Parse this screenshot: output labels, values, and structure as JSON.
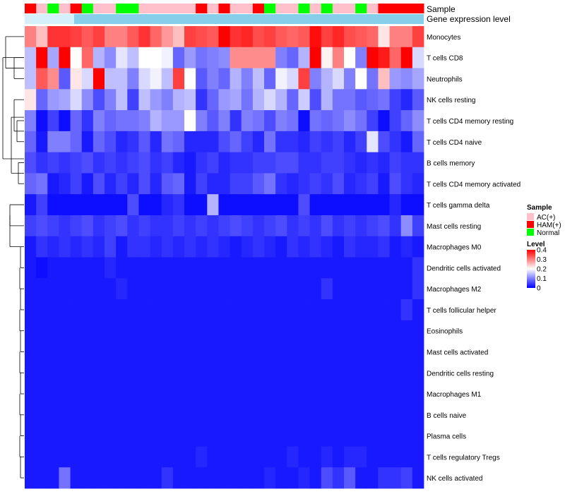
{
  "chart_data": {
    "type": "heatmap",
    "title": "",
    "xlabel": "",
    "ylabel": "",
    "annotations": {
      "sample_label": "Sample",
      "gene_label": "Gene expression level"
    },
    "row_labels": [
      "Monocytes",
      "T cells CD8",
      "Neutrophils",
      "NK cells resting",
      "T cells CD4 memory resting",
      "T cells CD4 naive",
      "B cells memory",
      "T cells CD4 memory activated",
      "T cells gamma delta",
      "Mast cells resting",
      "Macrophages M0",
      "Dendritic cells activated",
      "Macrophages M2",
      "T cells follicular helper",
      "Eosinophils",
      "Mast cells activated",
      "Dendritic cells resting",
      "Macrophages M1",
      "B cells naive",
      "Plasma cells",
      "T cells regulatory  Tregs",
      "NK cells activated"
    ],
    "sample_groups": [
      "HAM(+)",
      "AC(+)",
      "Normal",
      "AC(+)",
      "HAM(+)",
      "Normal",
      "AC(+)",
      "AC(+)",
      "Normal",
      "Normal",
      "AC(+)",
      "AC(+)",
      "AC(+)",
      "AC(+)",
      "AC(+)",
      "HAM(+)",
      "AC(+)",
      "HAM(+)",
      "AC(+)",
      "AC(+)",
      "HAM(+)",
      "Normal",
      "AC(+)",
      "AC(+)",
      "Normal",
      "AC(+)",
      "Normal",
      "AC(+)",
      "AC(+)",
      "Normal",
      "AC(+)",
      "HAM(+)",
      "HAM(+)",
      "HAM(+)",
      "HAM(+)"
    ],
    "values": [
      [
        0.3,
        0.25,
        0.36,
        0.36,
        0.35,
        0.33,
        0.35,
        0.3,
        0.3,
        0.33,
        0.36,
        0.32,
        0.28,
        0.25,
        0.35,
        0.34,
        0.33,
        0.4,
        0.36,
        0.37,
        0.34,
        0.35,
        0.33,
        0.32,
        0.33,
        0.39,
        0.35,
        0.37,
        0.34,
        0.33,
        0.32,
        0.22,
        0.3,
        0.3,
        0.35
      ],
      [
        0.15,
        0.41,
        0.13,
        0.41,
        0.2,
        0.32,
        0.14,
        0.11,
        0.18,
        0.15,
        0.2,
        0.2,
        0.19,
        0.08,
        0.12,
        0.09,
        0.1,
        0.11,
        0.29,
        0.29,
        0.29,
        0.29,
        0.1,
        0.08,
        0.14,
        0.4,
        0.21,
        0.3,
        0.2,
        0.1,
        0.4,
        0.38,
        0.32,
        0.4,
        0.17
      ],
      [
        0.15,
        0.33,
        0.29,
        0.07,
        0.22,
        0.17,
        0.41,
        0.15,
        0.15,
        0.1,
        0.17,
        0.19,
        0.15,
        0.35,
        0.2,
        0.07,
        0.1,
        0.08,
        0.14,
        0.1,
        0.15,
        0.08,
        0.19,
        0.17,
        0.35,
        0.1,
        0.14,
        0.17,
        0.1,
        0.2,
        0.09,
        0.25,
        0.12,
        0.11,
        0.13
      ],
      [
        0.22,
        0.08,
        0.12,
        0.13,
        0.17,
        0.11,
        0.06,
        0.1,
        0.15,
        0.05,
        0.15,
        0.12,
        0.1,
        0.14,
        0.15,
        0.04,
        0.08,
        0.12,
        0.13,
        0.09,
        0.14,
        0.17,
        0.14,
        0.08,
        0.16,
        0.06,
        0.14,
        0.09,
        0.09,
        0.07,
        0.08,
        0.09,
        0.05,
        0.03,
        0.07
      ],
      [
        0.1,
        0.01,
        0.05,
        0.01,
        0.08,
        0.04,
        0.1,
        0.08,
        0.09,
        0.09,
        0.1,
        0.14,
        0.12,
        0.12,
        0.2,
        0.1,
        0.07,
        0.1,
        0.04,
        0.1,
        0.09,
        0.06,
        0.1,
        0.09,
        0.01,
        0.09,
        0.08,
        0.09,
        0.11,
        0.09,
        0.05,
        0.01,
        0.05,
        0.08,
        0.11
      ],
      [
        0.08,
        0.02,
        0.1,
        0.1,
        0.08,
        0.02,
        0.08,
        0.06,
        0.03,
        0.04,
        0.07,
        0.03,
        0.09,
        0.08,
        0.03,
        0.03,
        0.03,
        0.06,
        0.08,
        0.05,
        0.03,
        0.09,
        0.04,
        0.04,
        0.03,
        0.05,
        0.04,
        0.05,
        0.03,
        0.05,
        0.18,
        0.06,
        0.04,
        0.02,
        0.08
      ],
      [
        0.06,
        0.04,
        0.05,
        0.04,
        0.05,
        0.06,
        0.04,
        0.05,
        0.04,
        0.05,
        0.06,
        0.04,
        0.05,
        0.03,
        0.02,
        0.04,
        0.05,
        0.03,
        0.04,
        0.04,
        0.05,
        0.05,
        0.06,
        0.06,
        0.04,
        0.04,
        0.05,
        0.05,
        0.04,
        0.03,
        0.04,
        0.03,
        0.05,
        0.04,
        0.04
      ],
      [
        0.08,
        0.09,
        0.02,
        0.03,
        0.05,
        0.02,
        0.06,
        0.03,
        0.05,
        0.03,
        0.06,
        0.03,
        0.07,
        0.08,
        0.02,
        0.05,
        0.03,
        0.03,
        0.05,
        0.05,
        0.07,
        0.09,
        0.04,
        0.03,
        0.04,
        0.05,
        0.04,
        0.06,
        0.03,
        0.04,
        0.05,
        0.02,
        0.06,
        0.04,
        0.03
      ],
      [
        0.02,
        0.05,
        0.01,
        0.01,
        0.01,
        0.01,
        0.01,
        0.01,
        0.01,
        0.06,
        0.01,
        0.01,
        0.03,
        0.04,
        0.01,
        0.01,
        0.14,
        0.01,
        0.01,
        0.01,
        0.01,
        0.01,
        0.01,
        0.01,
        0.06,
        0.01,
        0.01,
        0.01,
        0.01,
        0.01,
        0.01,
        0.01,
        0.03,
        0.01,
        0.01
      ],
      [
        0.05,
        0.06,
        0.05,
        0.04,
        0.05,
        0.06,
        0.04,
        0.05,
        0.06,
        0.04,
        0.05,
        0.04,
        0.04,
        0.05,
        0.04,
        0.05,
        0.04,
        0.05,
        0.06,
        0.05,
        0.04,
        0.05,
        0.06,
        0.04,
        0.05,
        0.04,
        0.06,
        0.04,
        0.05,
        0.04,
        0.05,
        0.06,
        0.04,
        0.11,
        0.05
      ],
      [
        0.02,
        0.04,
        0.03,
        0.04,
        0.03,
        0.04,
        0.03,
        0.05,
        0.02,
        0.04,
        0.04,
        0.03,
        0.04,
        0.03,
        0.04,
        0.03,
        0.04,
        0.03,
        0.02,
        0.03,
        0.04,
        0.03,
        0.02,
        0.04,
        0.03,
        0.04,
        0.03,
        0.02,
        0.04,
        0.03,
        0.03,
        0.04,
        0.02,
        0.03,
        0.02
      ],
      [
        0.02,
        0.01,
        0.02,
        0.02,
        0.02,
        0.02,
        0.02,
        0.03,
        0.02,
        0.02,
        0.02,
        0.02,
        0.02,
        0.02,
        0.02,
        0.02,
        0.02,
        0.02,
        0.02,
        0.02,
        0.02,
        0.02,
        0.02,
        0.02,
        0.02,
        0.02,
        0.02,
        0.02,
        0.02,
        0.02,
        0.02,
        0.02,
        0.02,
        0.02,
        0.04
      ],
      [
        0.02,
        0.02,
        0.02,
        0.02,
        0.02,
        0.02,
        0.02,
        0.02,
        0.03,
        0.02,
        0.02,
        0.02,
        0.02,
        0.02,
        0.02,
        0.02,
        0.02,
        0.02,
        0.02,
        0.02,
        0.02,
        0.02,
        0.02,
        0.02,
        0.02,
        0.02,
        0.04,
        0.02,
        0.02,
        0.02,
        0.02,
        0.02,
        0.02,
        0.02,
        0.04
      ],
      [
        0.02,
        0.02,
        0.02,
        0.02,
        0.02,
        0.02,
        0.02,
        0.02,
        0.02,
        0.02,
        0.02,
        0.02,
        0.02,
        0.02,
        0.02,
        0.02,
        0.02,
        0.02,
        0.02,
        0.02,
        0.02,
        0.02,
        0.02,
        0.02,
        0.02,
        0.02,
        0.02,
        0.02,
        0.02,
        0.02,
        0.02,
        0.02,
        0.02,
        0.04,
        0.02
      ],
      [
        0.02,
        0.02,
        0.02,
        0.02,
        0.02,
        0.02,
        0.02,
        0.02,
        0.02,
        0.02,
        0.02,
        0.02,
        0.02,
        0.02,
        0.02,
        0.02,
        0.02,
        0.02,
        0.02,
        0.02,
        0.02,
        0.02,
        0.02,
        0.02,
        0.02,
        0.02,
        0.02,
        0.02,
        0.02,
        0.02,
        0.02,
        0.02,
        0.02,
        0.02,
        0.02
      ],
      [
        0.02,
        0.02,
        0.02,
        0.02,
        0.02,
        0.02,
        0.02,
        0.02,
        0.02,
        0.02,
        0.02,
        0.02,
        0.02,
        0.02,
        0.02,
        0.02,
        0.02,
        0.02,
        0.02,
        0.02,
        0.02,
        0.02,
        0.02,
        0.02,
        0.02,
        0.02,
        0.02,
        0.02,
        0.02,
        0.02,
        0.02,
        0.02,
        0.02,
        0.02,
        0.02
      ],
      [
        0.02,
        0.02,
        0.02,
        0.02,
        0.02,
        0.02,
        0.02,
        0.02,
        0.02,
        0.02,
        0.02,
        0.02,
        0.02,
        0.02,
        0.02,
        0.02,
        0.02,
        0.02,
        0.02,
        0.02,
        0.02,
        0.02,
        0.02,
        0.02,
        0.02,
        0.02,
        0.02,
        0.02,
        0.02,
        0.02,
        0.02,
        0.02,
        0.02,
        0.02,
        0.02
      ],
      [
        0.02,
        0.02,
        0.02,
        0.02,
        0.02,
        0.02,
        0.02,
        0.02,
        0.02,
        0.02,
        0.02,
        0.02,
        0.02,
        0.02,
        0.02,
        0.02,
        0.02,
        0.02,
        0.02,
        0.02,
        0.02,
        0.02,
        0.02,
        0.02,
        0.02,
        0.02,
        0.02,
        0.02,
        0.02,
        0.02,
        0.02,
        0.02,
        0.02,
        0.02,
        0.02
      ],
      [
        0.02,
        0.02,
        0.02,
        0.02,
        0.02,
        0.02,
        0.02,
        0.02,
        0.02,
        0.02,
        0.02,
        0.02,
        0.02,
        0.02,
        0.02,
        0.02,
        0.02,
        0.02,
        0.02,
        0.02,
        0.02,
        0.02,
        0.02,
        0.02,
        0.02,
        0.02,
        0.02,
        0.02,
        0.02,
        0.02,
        0.02,
        0.02,
        0.02,
        0.02,
        0.02
      ],
      [
        0.02,
        0.02,
        0.02,
        0.02,
        0.02,
        0.02,
        0.02,
        0.02,
        0.02,
        0.02,
        0.02,
        0.02,
        0.02,
        0.02,
        0.02,
        0.02,
        0.02,
        0.02,
        0.02,
        0.02,
        0.02,
        0.02,
        0.02,
        0.02,
        0.02,
        0.02,
        0.02,
        0.02,
        0.02,
        0.02,
        0.02,
        0.02,
        0.02,
        0.02,
        0.02
      ],
      [
        0.02,
        0.02,
        0.02,
        0.02,
        0.02,
        0.02,
        0.02,
        0.02,
        0.02,
        0.02,
        0.02,
        0.02,
        0.02,
        0.02,
        0.02,
        0.03,
        0.02,
        0.02,
        0.02,
        0.02,
        0.02,
        0.02,
        0.02,
        0.03,
        0.02,
        0.02,
        0.03,
        0.02,
        0.03,
        0.03,
        0.02,
        0.02,
        0.02,
        0.02,
        0.02
      ],
      [
        0.02,
        0.02,
        0.02,
        0.09,
        0.02,
        0.02,
        0.02,
        0.02,
        0.02,
        0.02,
        0.02,
        0.02,
        0.04,
        0.02,
        0.02,
        0.02,
        0.02,
        0.02,
        0.02,
        0.02,
        0.02,
        0.03,
        0.02,
        0.02,
        0.03,
        0.02,
        0.06,
        0.04,
        0.07,
        0.02,
        0.02,
        0.04,
        0.04,
        0.05,
        0.02
      ]
    ],
    "legend": {
      "position": "right",
      "sample_title": "Sample",
      "sample_entries": [
        {
          "label": "AC(+)",
          "color": "#ffc0cb"
        },
        {
          "label": "HAM(+)",
          "color": "#ff0000"
        },
        {
          "label": "Normal",
          "color": "#00ff00"
        }
      ],
      "level_title": "Level",
      "level_range": [
        0,
        0.4
      ],
      "level_ticks": [
        "0.4",
        "0.3",
        "0.2",
        "0.1",
        "0"
      ]
    },
    "colors": {
      "low": "#0000ff",
      "mid": "#ffffff",
      "high": "#ff0000",
      "gene_bar": "#87ceeb",
      "gene_bar_light": "#d6f0fb"
    }
  }
}
